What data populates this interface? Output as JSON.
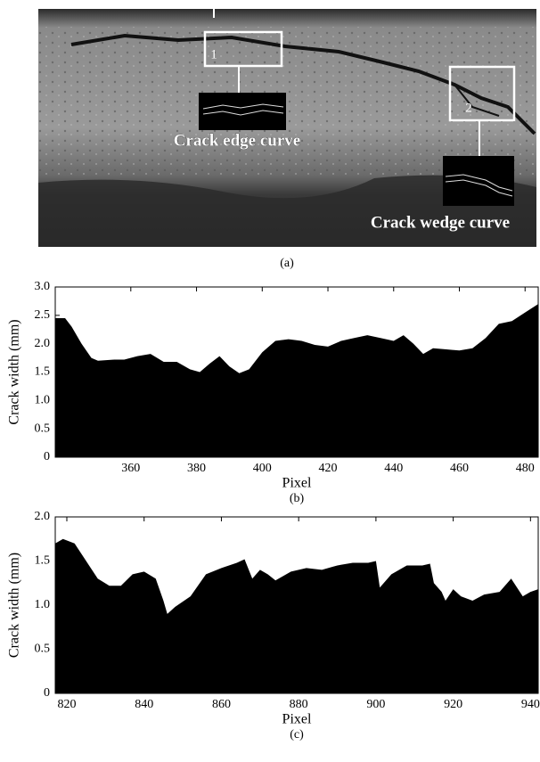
{
  "figure_a": {
    "box_1": "1",
    "box_2": "2",
    "label_edge": "Crack edge curve",
    "label_wedge": "Crack wedge curve",
    "caption": "(a)"
  },
  "chart_data": [
    {
      "type": "area",
      "color": "#000000",
      "ylabel": "Crack width (mm)",
      "xlabel": "Pixel",
      "caption": "(b)",
      "xlim": [
        337,
        484
      ],
      "ylim": [
        0,
        3
      ],
      "xticks": [
        360,
        380,
        400,
        420,
        440,
        460,
        480
      ],
      "yticks": [
        0,
        0.5,
        {
          "value": 1,
          "label": "1.0"
        },
        1.5,
        {
          "value": 2,
          "label": "2.0"
        },
        2.5,
        {
          "value": 3,
          "label": "3.0"
        }
      ],
      "x": [
        337,
        340,
        342,
        345,
        348,
        350,
        355,
        358,
        362,
        366,
        370,
        374,
        378,
        381,
        384,
        387,
        390,
        393,
        396,
        400,
        404,
        408,
        412,
        416,
        420,
        424,
        428,
        432,
        436,
        440,
        443,
        446,
        449,
        452,
        456,
        460,
        464,
        468,
        472,
        476,
        480,
        484
      ],
      "values": [
        2.45,
        2.45,
        2.3,
        2.0,
        1.75,
        1.7,
        1.72,
        1.72,
        1.78,
        1.82,
        1.68,
        1.68,
        1.55,
        1.5,
        1.65,
        1.78,
        1.6,
        1.48,
        1.55,
        1.85,
        2.05,
        2.08,
        2.05,
        1.98,
        1.95,
        2.05,
        2.1,
        2.15,
        2.1,
        2.05,
        2.15,
        2.0,
        1.82,
        1.92,
        1.9,
        1.88,
        1.92,
        2.1,
        2.35,
        2.4,
        2.55,
        2.7
      ]
    },
    {
      "type": "area",
      "color": "#000000",
      "ylabel": "Crack width (mm)",
      "xlabel": "Pixel",
      "caption": "(c)",
      "xlim": [
        817,
        942
      ],
      "ylim": [
        0,
        2
      ],
      "xticks": [
        820,
        840,
        860,
        880,
        900,
        920,
        940
      ],
      "yticks": [
        0,
        0.5,
        {
          "value": 1,
          "label": "1.0"
        },
        1.5,
        {
          "value": 2,
          "label": "2.0"
        }
      ],
      "x": [
        817,
        819,
        822,
        825,
        828,
        831,
        834,
        837,
        840,
        843,
        845,
        846,
        848,
        852,
        856,
        860,
        864,
        866,
        868,
        870,
        872,
        874,
        878,
        882,
        886,
        890,
        894,
        898,
        900,
        901,
        904,
        908,
        912,
        914,
        915,
        917,
        918,
        920,
        922,
        925,
        928,
        932,
        935,
        938,
        940,
        942
      ],
      "values": [
        1.7,
        1.75,
        1.7,
        1.5,
        1.3,
        1.22,
        1.22,
        1.35,
        1.38,
        1.3,
        1.05,
        0.9,
        0.98,
        1.1,
        1.35,
        1.42,
        1.48,
        1.52,
        1.3,
        1.4,
        1.35,
        1.28,
        1.38,
        1.42,
        1.4,
        1.45,
        1.48,
        1.48,
        1.5,
        1.2,
        1.35,
        1.45,
        1.45,
        1.47,
        1.25,
        1.15,
        1.05,
        1.18,
        1.1,
        1.05,
        1.12,
        1.15,
        1.3,
        1.1,
        1.15,
        1.18
      ]
    }
  ]
}
